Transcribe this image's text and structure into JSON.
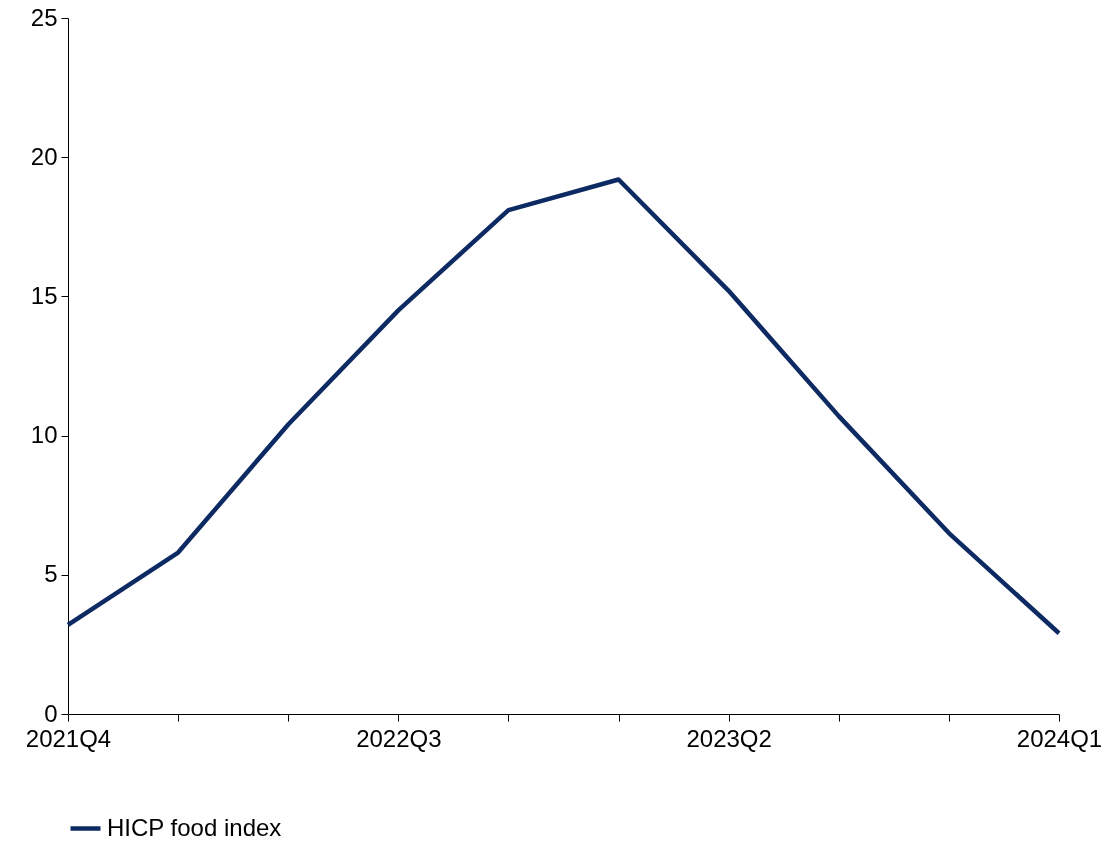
{
  "chart_data": {
    "type": "line",
    "categories": [
      "2021Q4",
      null,
      null,
      "2022Q3",
      null,
      null,
      "2023Q2",
      null,
      null,
      "2024Q1"
    ],
    "series": [
      {
        "name": "HICP food index",
        "color": "#0d2a63",
        "values": [
          3.2,
          5.8,
          10.4,
          14.5,
          18.1,
          19.2,
          15.2,
          10.7,
          6.5,
          2.9
        ]
      }
    ],
    "ylim": [
      0,
      25
    ],
    "yticks": [
      0,
      5,
      10,
      15,
      20,
      25
    ],
    "grid": false,
    "legend": "bottom",
    "marker": "none",
    "line_style": "solid"
  }
}
